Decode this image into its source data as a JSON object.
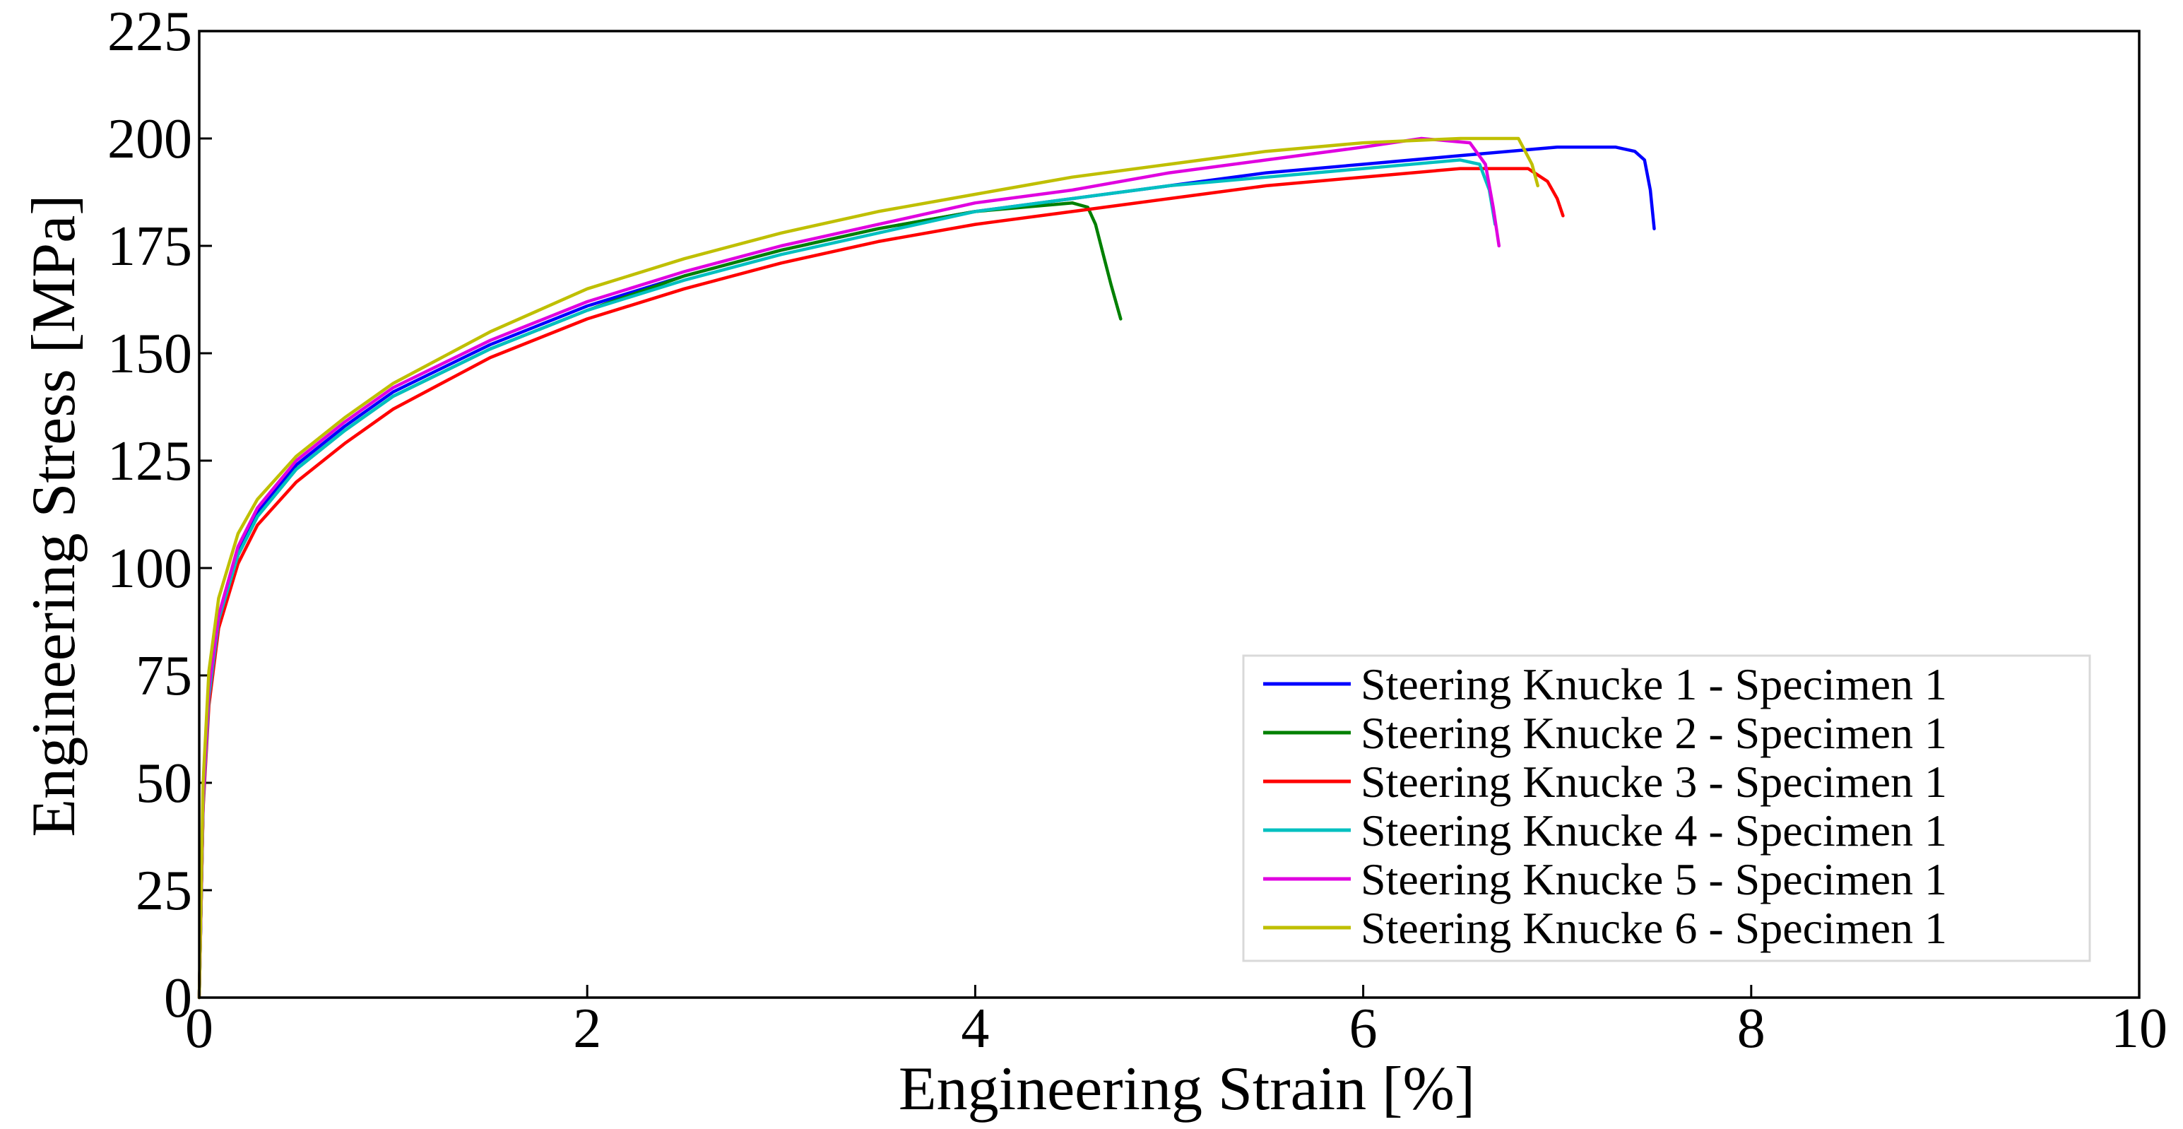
{
  "chart_data": {
    "type": "line",
    "title": "",
    "xlabel": "Engineering Strain [%]",
    "ylabel": "Engineering Stress [MPa]",
    "xlim": [
      0,
      10
    ],
    "ylim": [
      0,
      225
    ],
    "xticks": [
      "0",
      "2",
      "4",
      "6",
      "8",
      "10"
    ],
    "yticks": [
      "0",
      "25",
      "50",
      "75",
      "100",
      "125",
      "150",
      "175",
      "200",
      "225"
    ],
    "grid": false,
    "legend_position": "lower-right",
    "series": [
      {
        "name": "Steering Knucke 1 - Specimen 1",
        "color": "#0000ff",
        "x": [
          0,
          0.02,
          0.05,
          0.1,
          0.2,
          0.3,
          0.5,
          0.75,
          1.0,
          1.5,
          2.0,
          2.5,
          3.0,
          3.5,
          4.0,
          4.5,
          5.0,
          5.5,
          6.0,
          6.5,
          7.0,
          7.3,
          7.4,
          7.45,
          7.48,
          7.5
        ],
        "y": [
          0,
          45,
          70,
          88,
          104,
          113,
          124,
          133,
          141,
          152,
          161,
          168,
          174,
          179,
          183,
          186,
          189,
          192,
          194,
          196,
          198,
          198,
          197,
          195,
          188,
          179
        ]
      },
      {
        "name": "Steering Knucke 2 - Specimen 1",
        "color": "#008000",
        "x": [
          0,
          0.02,
          0.05,
          0.1,
          0.2,
          0.3,
          0.5,
          0.75,
          1.0,
          1.5,
          2.0,
          2.5,
          3.0,
          3.5,
          4.0,
          4.5,
          4.58,
          4.62,
          4.66,
          4.7,
          4.75
        ],
        "y": [
          0,
          45,
          70,
          88,
          103,
          112,
          123,
          132,
          140,
          151,
          160,
          168,
          174,
          179,
          183,
          185,
          184,
          180,
          173,
          166,
          158
        ]
      },
      {
        "name": "Steering Knucke 3 - Specimen 1",
        "color": "#ff0000",
        "x": [
          0,
          0.02,
          0.05,
          0.1,
          0.2,
          0.3,
          0.5,
          0.75,
          1.0,
          1.5,
          2.0,
          2.5,
          3.0,
          3.5,
          4.0,
          4.5,
          5.0,
          5.5,
          6.0,
          6.5,
          6.85,
          6.95,
          7.0,
          7.03
        ],
        "y": [
          0,
          44,
          68,
          86,
          101,
          110,
          120,
          129,
          137,
          149,
          158,
          165,
          171,
          176,
          180,
          183,
          186,
          189,
          191,
          193,
          193,
          190,
          186,
          182
        ]
      },
      {
        "name": "Steering Knucke 4 - Specimen 1",
        "color": "#00c0c0",
        "x": [
          0,
          0.02,
          0.05,
          0.1,
          0.2,
          0.3,
          0.5,
          0.75,
          1.0,
          1.5,
          2.0,
          2.5,
          3.0,
          3.5,
          4.0,
          4.5,
          5.0,
          5.5,
          6.0,
          6.5,
          6.6,
          6.65,
          6.68
        ],
        "y": [
          0,
          45,
          70,
          88,
          103,
          112,
          123,
          132,
          140,
          151,
          160,
          167,
          173,
          178,
          183,
          186,
          189,
          191,
          193,
          195,
          194,
          188,
          180
        ]
      },
      {
        "name": "Steering Knucke 5 - Specimen 1",
        "color": "#e000e0",
        "x": [
          0,
          0.02,
          0.05,
          0.1,
          0.2,
          0.3,
          0.5,
          0.75,
          1.0,
          1.5,
          2.0,
          2.5,
          3.0,
          3.5,
          4.0,
          4.5,
          5.0,
          5.5,
          6.0,
          6.3,
          6.55,
          6.63,
          6.67,
          6.7
        ],
        "y": [
          0,
          46,
          72,
          89,
          105,
          114,
          125,
          134,
          142,
          153,
          162,
          169,
          175,
          180,
          185,
          188,
          192,
          195,
          198,
          200,
          199,
          194,
          184,
          175
        ]
      },
      {
        "name": "Steering Knucke 6 - Specimen 1",
        "color": "#bfbf00",
        "x": [
          0,
          0.02,
          0.05,
          0.1,
          0.2,
          0.3,
          0.5,
          0.75,
          1.0,
          1.5,
          2.0,
          2.5,
          3.0,
          3.5,
          4.0,
          4.5,
          5.0,
          5.5,
          6.0,
          6.5,
          6.8,
          6.87,
          6.9
        ],
        "y": [
          0,
          50,
          76,
          93,
          108,
          116,
          126,
          135,
          143,
          155,
          165,
          172,
          178,
          183,
          187,
          191,
          194,
          197,
          199,
          200,
          200,
          194,
          189
        ]
      }
    ]
  }
}
